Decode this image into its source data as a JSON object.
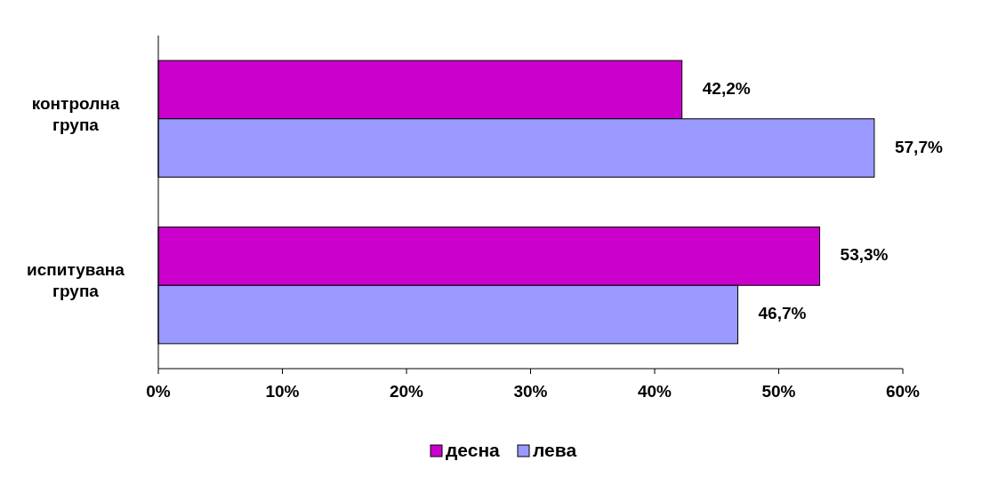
{
  "chart_data": {
    "type": "bar",
    "orientation": "horizontal",
    "categories": [
      "контролна група",
      "испитувана група"
    ],
    "series": [
      {
        "name": "десна",
        "color": "#cc00cc",
        "values": [
          42.2,
          53.3
        ],
        "value_labels": [
          "42,2%",
          "53,3%"
        ]
      },
      {
        "name": "лева",
        "color": "#9999ff",
        "values": [
          57.7,
          46.7
        ],
        "value_labels": [
          "57,7%",
          "46,7%"
        ]
      }
    ],
    "xlim": [
      0,
      60
    ],
    "xticks": [
      {
        "value": 0,
        "label": "0%"
      },
      {
        "value": 10,
        "label": "10%"
      },
      {
        "value": 20,
        "label": "20%"
      },
      {
        "value": 30,
        "label": "30%"
      },
      {
        "value": 40,
        "label": "40%"
      },
      {
        "value": 50,
        "label": "50%"
      },
      {
        "value": 60,
        "label": "60%"
      }
    ],
    "grid": false,
    "legend": "bottom"
  }
}
